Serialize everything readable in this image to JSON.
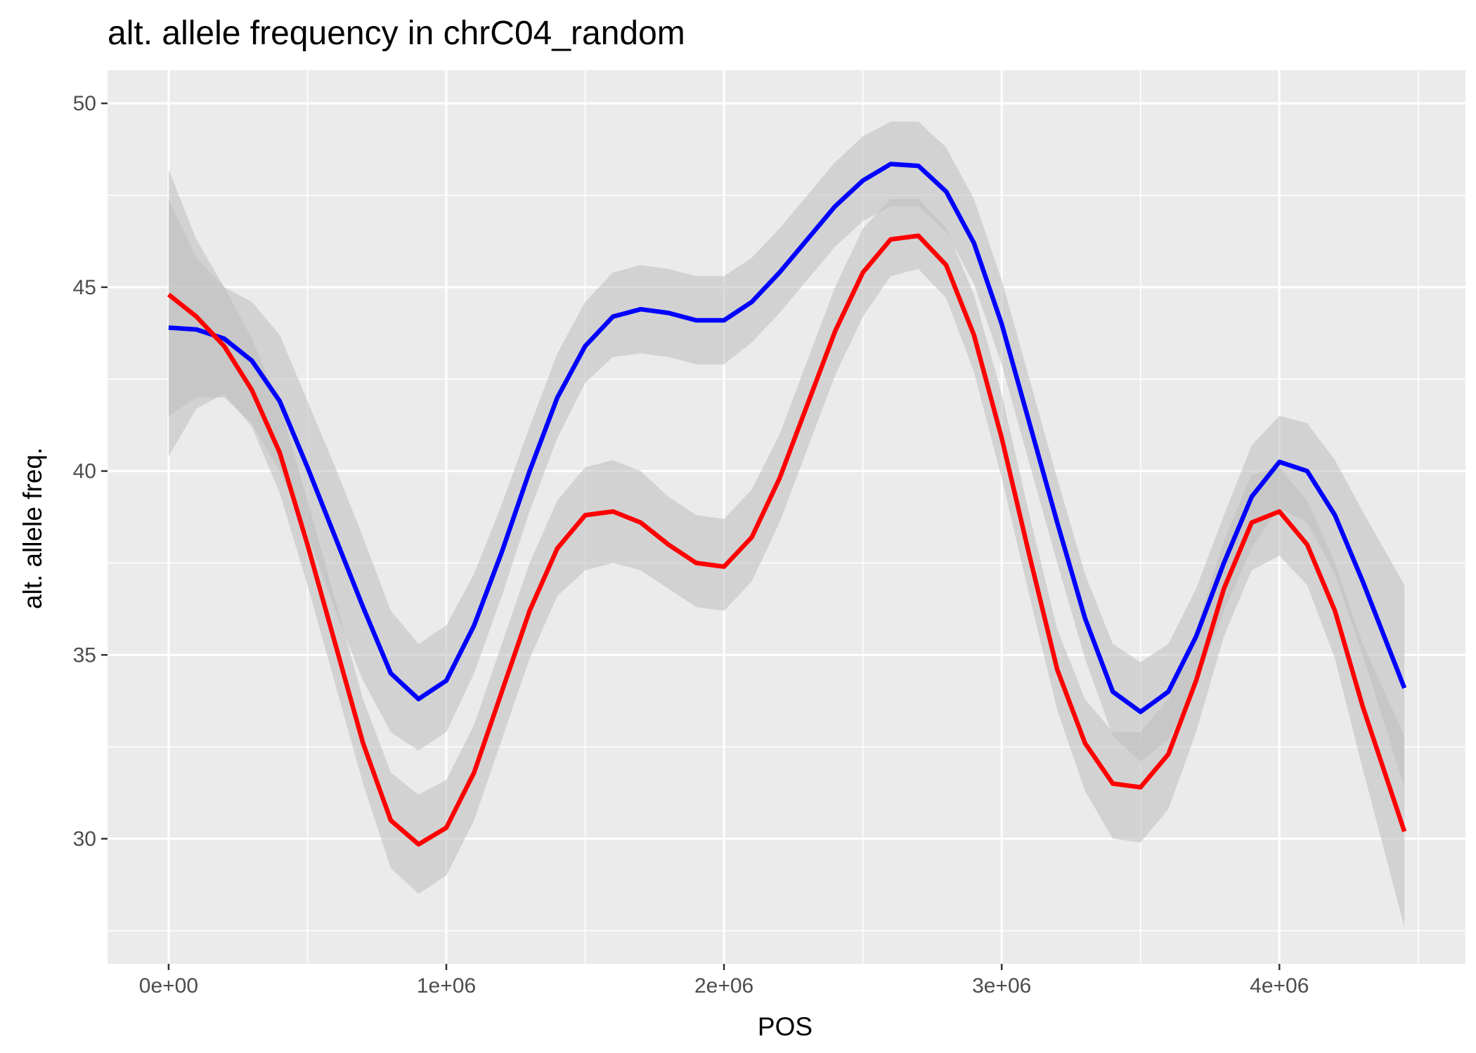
{
  "chart_data": {
    "type": "line",
    "title": "alt. allele frequency in chrC04_random",
    "xlabel": "POS",
    "ylabel": "alt. allele freq.",
    "xlim": [
      -220000,
      4670000
    ],
    "ylim": [
      26.6,
      50.9
    ],
    "x_ticks": [
      0,
      1000000,
      2000000,
      3000000,
      4000000
    ],
    "x_tick_labels": [
      "0e+00",
      "1e+06",
      "2e+06",
      "3e+06",
      "4e+06"
    ],
    "y_ticks": [
      30,
      35,
      40,
      45,
      50
    ],
    "y_tick_labels": [
      "30",
      "35",
      "40",
      "45",
      "50"
    ],
    "grid": true,
    "legend": "none",
    "colors": {
      "panel": "#ebebeb",
      "grid": "#ffffff",
      "ribbon": "#bdbdbd"
    },
    "series": [
      {
        "color": "#0000ff",
        "x": [
          0,
          100000,
          200000,
          300000,
          400000,
          500000,
          600000,
          700000,
          800000,
          900000,
          1000000,
          1100000,
          1200000,
          1300000,
          1400000,
          1500000,
          1600000,
          1700000,
          1800000,
          1900000,
          2000000,
          2100000,
          2200000,
          2300000,
          2400000,
          2500000,
          2600000,
          2700000,
          2800000,
          2900000,
          3000000,
          3100000,
          3200000,
          3300000,
          3400000,
          3500000,
          3600000,
          3700000,
          3800000,
          3900000,
          4000000,
          4100000,
          4200000,
          4300000,
          4450000
        ],
        "y": [
          43.9,
          43.85,
          43.6,
          43.0,
          41.9,
          40.1,
          38.2,
          36.3,
          34.5,
          33.8,
          34.3,
          35.8,
          37.8,
          40.0,
          42.0,
          43.4,
          44.2,
          44.4,
          44.3,
          44.1,
          44.1,
          44.6,
          45.4,
          46.3,
          47.2,
          47.9,
          48.35,
          48.3,
          47.6,
          46.2,
          44.0,
          41.3,
          38.6,
          36.0,
          34.0,
          33.45,
          34.0,
          35.5,
          37.5,
          39.3,
          40.25,
          40.0,
          38.8,
          37.0,
          34.1
        ],
        "lower": [
          41.5,
          42.0,
          42.0,
          41.3,
          40.0,
          38.3,
          36.2,
          34.3,
          32.9,
          32.4,
          32.9,
          34.5,
          36.6,
          38.9,
          40.9,
          42.4,
          43.1,
          43.2,
          43.1,
          42.9,
          42.9,
          43.5,
          44.3,
          45.2,
          46.1,
          46.8,
          47.2,
          47.2,
          46.5,
          45.1,
          42.9,
          40.2,
          37.5,
          34.9,
          32.8,
          32.1,
          32.7,
          34.2,
          36.2,
          37.9,
          39.0,
          38.6,
          37.2,
          35.0,
          31.4
        ],
        "upper": [
          47.4,
          45.8,
          45.0,
          44.6,
          43.7,
          41.9,
          40.1,
          38.2,
          36.2,
          35.3,
          35.8,
          37.2,
          39.1,
          41.2,
          43.2,
          44.6,
          45.4,
          45.6,
          45.5,
          45.3,
          45.3,
          45.8,
          46.6,
          47.5,
          48.4,
          49.1,
          49.5,
          49.5,
          48.8,
          47.4,
          45.2,
          42.5,
          39.8,
          37.2,
          35.3,
          34.8,
          35.3,
          36.8,
          38.8,
          40.7,
          41.5,
          41.3,
          40.3,
          38.9,
          36.9
        ]
      },
      {
        "color": "#ff0000",
        "x": [
          0,
          100000,
          200000,
          300000,
          400000,
          500000,
          600000,
          700000,
          800000,
          900000,
          1000000,
          1100000,
          1200000,
          1300000,
          1400000,
          1500000,
          1600000,
          1700000,
          1800000,
          1900000,
          2000000,
          2100000,
          2200000,
          2300000,
          2400000,
          2500000,
          2600000,
          2700000,
          2800000,
          2900000,
          3000000,
          3100000,
          3200000,
          3300000,
          3400000,
          3500000,
          3600000,
          3700000,
          3800000,
          3900000,
          4000000,
          4100000,
          4200000,
          4300000,
          4450000
        ],
        "y": [
          44.8,
          44.2,
          43.4,
          42.2,
          40.5,
          38.0,
          35.3,
          32.6,
          30.5,
          29.85,
          30.3,
          31.8,
          34.0,
          36.2,
          37.9,
          38.8,
          38.9,
          38.6,
          38.0,
          37.5,
          37.4,
          38.2,
          39.8,
          41.8,
          43.8,
          45.4,
          46.3,
          46.4,
          45.6,
          43.7,
          40.9,
          37.7,
          34.6,
          32.6,
          31.5,
          31.4,
          32.3,
          34.3,
          36.8,
          38.6,
          38.9,
          38.0,
          36.2,
          33.6,
          30.2
        ],
        "lower": [
          40.4,
          41.7,
          42.1,
          41.2,
          39.4,
          36.9,
          34.2,
          31.5,
          29.2,
          28.5,
          29.0,
          30.5,
          32.7,
          34.9,
          36.6,
          37.3,
          37.5,
          37.3,
          36.8,
          36.3,
          36.2,
          37.0,
          38.6,
          40.6,
          42.6,
          44.2,
          45.3,
          45.5,
          44.7,
          42.7,
          39.8,
          36.6,
          33.5,
          31.3,
          30.0,
          29.9,
          30.8,
          32.9,
          35.5,
          37.3,
          37.7,
          36.9,
          34.9,
          31.9,
          27.6
        ],
        "upper": [
          48.2,
          46.3,
          45.0,
          43.6,
          41.8,
          39.2,
          36.5,
          33.8,
          31.8,
          31.2,
          31.6,
          33.1,
          35.3,
          37.5,
          39.2,
          40.1,
          40.3,
          40.0,
          39.3,
          38.8,
          38.7,
          39.5,
          41.0,
          43.0,
          45.0,
          46.6,
          47.4,
          47.4,
          46.6,
          44.8,
          42.1,
          38.8,
          35.7,
          33.8,
          32.9,
          32.9,
          33.8,
          35.7,
          38.1,
          39.9,
          40.1,
          39.2,
          37.5,
          35.3,
          32.8
        ]
      }
    ]
  }
}
